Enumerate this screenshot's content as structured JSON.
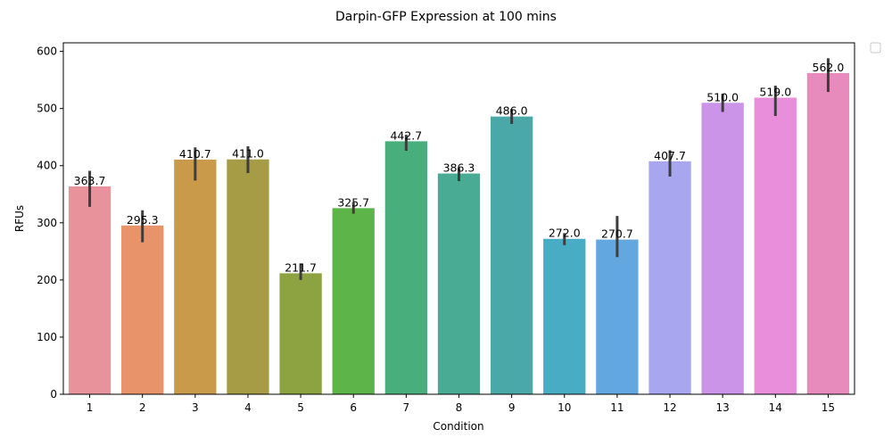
{
  "chart_data": {
    "type": "bar",
    "title": "Darpin-GFP Expression at 100 mins",
    "xlabel": "Condition",
    "ylabel": "RFUs",
    "ylim": [
      0,
      615
    ],
    "yticks": [
      0,
      100,
      200,
      300,
      400,
      500,
      600
    ],
    "categories": [
      "1",
      "2",
      "3",
      "4",
      "5",
      "6",
      "7",
      "8",
      "9",
      "10",
      "11",
      "12",
      "13",
      "14",
      "15"
    ],
    "values": [
      363.7,
      295.3,
      410.7,
      411.0,
      211.7,
      325.7,
      442.7,
      386.3,
      486.0,
      272.0,
      270.7,
      407.7,
      510.0,
      519.0,
      562.0
    ],
    "value_labels": [
      "363.7",
      "295.3",
      "410.7",
      "411.0",
      "211.7",
      "325.7",
      "442.7",
      "386.3",
      "486.0",
      "272.0",
      "270.7",
      "407.7",
      "510.0",
      "519.0",
      "562.0"
    ],
    "error_low": [
      328,
      266,
      374,
      387,
      200,
      316,
      426,
      373,
      473,
      261,
      240,
      381,
      494,
      487,
      529
    ],
    "error_high": [
      391,
      322,
      432,
      434,
      229,
      336,
      454,
      396,
      499,
      282,
      312,
      427,
      526,
      540,
      588
    ],
    "colors": [
      "#e8929c",
      "#e8936a",
      "#c89a4a",
      "#a59c45",
      "#8da341",
      "#5db54a",
      "#48ae7c",
      "#49ab93",
      "#4aa8a8",
      "#49acc5",
      "#62a7e0",
      "#a7a6ee",
      "#cb94e8",
      "#e88edb",
      "#e78bbd"
    ],
    "legend": {
      "placement": "top-right",
      "entries": []
    },
    "grid": false
  }
}
